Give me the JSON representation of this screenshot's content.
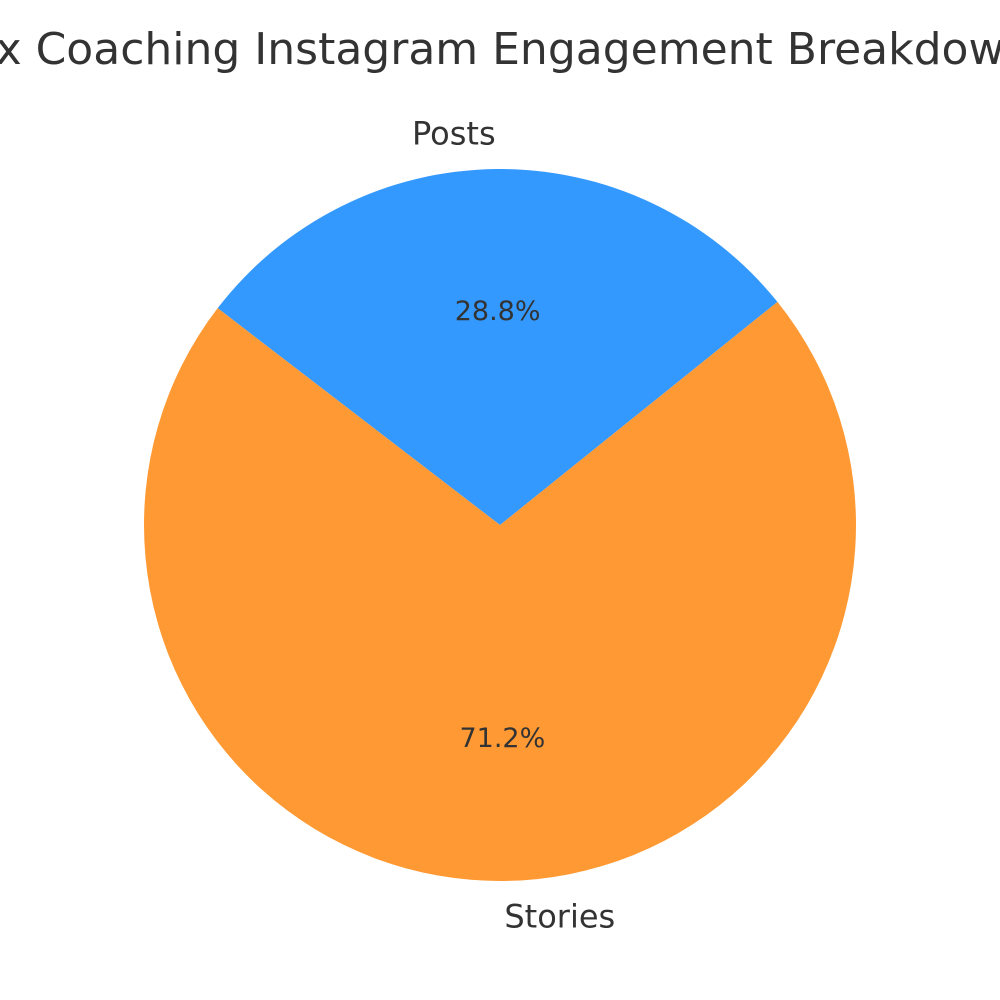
{
  "chart_data": {
    "type": "pie",
    "title": "x Coaching Instagram Engagement Breakdow",
    "categories": [
      "Posts",
      "Stories"
    ],
    "values": [
      28.8,
      71.2
    ],
    "percent_labels": [
      "28.8%",
      "71.2%"
    ],
    "colors": [
      "#3399ff",
      "#ff9933"
    ],
    "legend": "none",
    "grid": false
  }
}
